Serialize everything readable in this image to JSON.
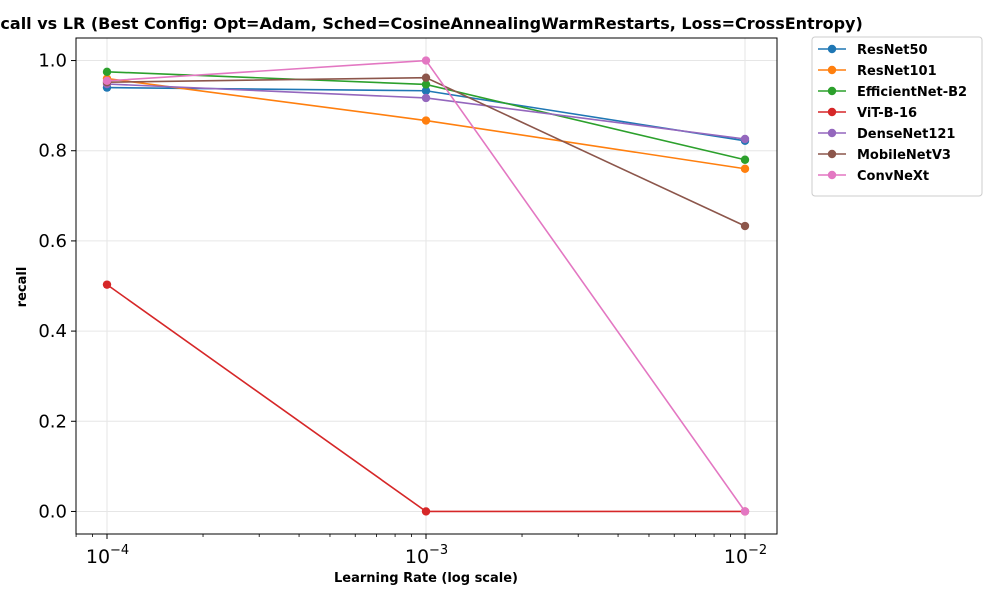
{
  "chart_data": {
    "type": "line",
    "title": "Recall vs LR (Best Config: Opt=Adam, Sched=CosineAnnealingWarmRestarts, Loss=CrossEntropy)",
    "xlabel": "Learning Rate (log scale)",
    "ylabel": "recall",
    "x_scale": "log",
    "x": [
      0.0001,
      0.001,
      0.01
    ],
    "x_tick_labels": [
      {
        "base": "10",
        "exp": "−4"
      },
      {
        "base": "10",
        "exp": "−3"
      },
      {
        "base": "10",
        "exp": "−2"
      }
    ],
    "ylim": [
      -0.05,
      1.05
    ],
    "y_ticks": [
      0.0,
      0.2,
      0.4,
      0.6,
      0.8,
      1.0
    ],
    "y_tick_labels": [
      "0.0",
      "0.2",
      "0.4",
      "0.6",
      "0.8",
      "1.0"
    ],
    "grid": true,
    "legend_position": "outside-top-right",
    "series": [
      {
        "name": "ResNet50",
        "color": "#1f77b4",
        "values": [
          0.94,
          0.933,
          0.822
        ]
      },
      {
        "name": "ResNet101",
        "color": "#ff7f0e",
        "values": [
          0.96,
          0.867,
          0.76
        ]
      },
      {
        "name": "EfficientNet-B2",
        "color": "#2ca02c",
        "values": [
          0.975,
          0.947,
          0.78
        ]
      },
      {
        "name": "ViT-B-16",
        "color": "#d62728",
        "values": [
          0.503,
          0.0,
          0.0
        ]
      },
      {
        "name": "DenseNet121",
        "color": "#9467bd",
        "values": [
          0.948,
          0.917,
          0.826
        ]
      },
      {
        "name": "MobileNetV3",
        "color": "#8c564b",
        "values": [
          0.952,
          0.962,
          0.633
        ]
      },
      {
        "name": "ConvNeXt",
        "color": "#e377c2",
        "values": [
          0.955,
          1.0,
          0.0
        ]
      }
    ]
  }
}
